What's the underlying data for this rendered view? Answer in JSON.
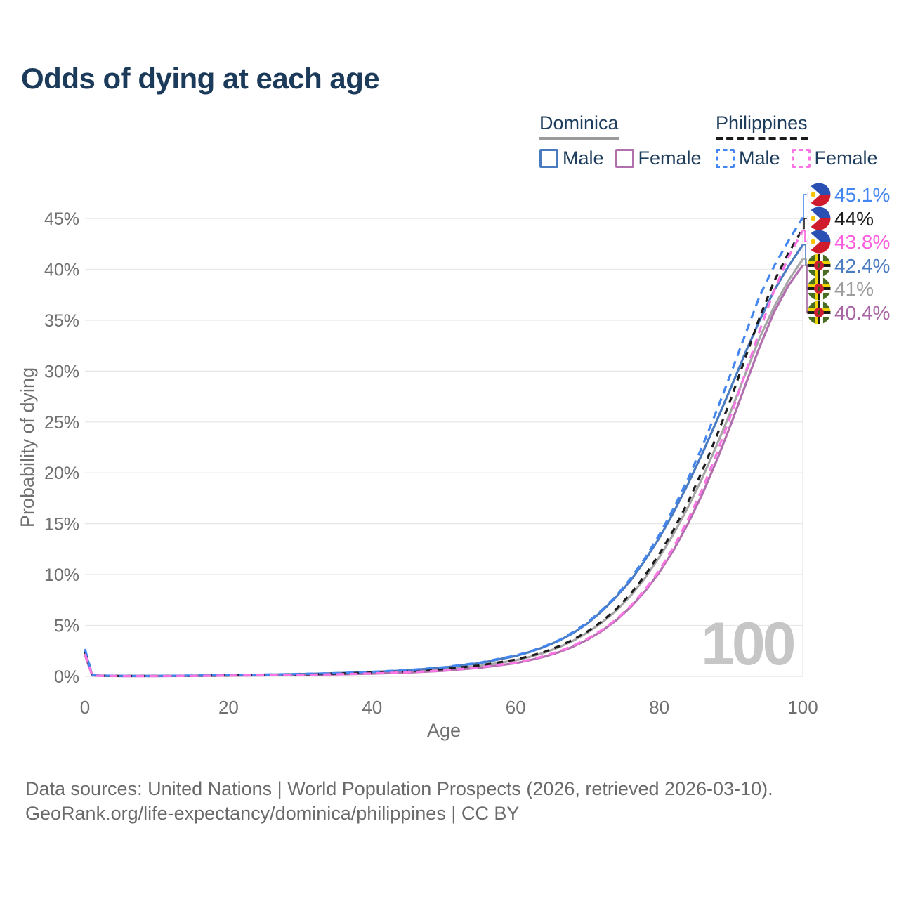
{
  "title": "Odds of dying at each age",
  "watermark": "100",
  "legend": {
    "groups": [
      {
        "country": "Dominica",
        "line_style": "solid",
        "underline_color": "#9b9b9b",
        "items": [
          {
            "label": "Male",
            "color": "#4a7ac0",
            "dashed": false
          },
          {
            "label": "Female",
            "color": "#b16fad",
            "dashed": false
          }
        ]
      },
      {
        "country": "Philippines",
        "line_style": "dashed",
        "underline_color": "#1a1a1a",
        "items": [
          {
            "label": "Male",
            "color": "#4486f0",
            "dashed": true
          },
          {
            "label": "Female",
            "color": "#fb76e4",
            "dashed": true
          }
        ]
      }
    ]
  },
  "footer": {
    "line1": "Data sources: United Nations | World Population Prospects (2026, retrieved 2026-03-10).",
    "line2": "GeoRank.org/life-expectancy/dominica/philippines | CC BY"
  },
  "chart_data": {
    "type": "line",
    "title": "Odds of dying at each age",
    "xlabel": "Age",
    "ylabel": "Probability of dying",
    "xlim": [
      0,
      100
    ],
    "ylim": [
      0,
      45
    ],
    "x_ticks": [
      0,
      20,
      40,
      60,
      80,
      100
    ],
    "y_ticks": [
      0,
      5,
      10,
      15,
      20,
      25,
      30,
      35,
      40,
      45
    ],
    "y_tick_suffix": "%",
    "grid": "horizontal",
    "legend_position": "top-right",
    "x": [
      0,
      1,
      2,
      5,
      10,
      15,
      20,
      25,
      30,
      35,
      40,
      45,
      50,
      55,
      60,
      62,
      64,
      66,
      68,
      70,
      72,
      74,
      76,
      78,
      80,
      82,
      84,
      86,
      88,
      90,
      92,
      94,
      96,
      98,
      100
    ],
    "series": [
      {
        "id": "dominica-both",
        "name": "Dominica Both sexes",
        "country": "Dominica",
        "sex": "both",
        "flag": "dominica",
        "color": "#a6a6a6",
        "label_color": "#9d9d9d",
        "dashed": false,
        "end_label": "41%",
        "values": [
          2.3,
          0.12,
          0.07,
          0.04,
          0.04,
          0.06,
          0.09,
          0.14,
          0.19,
          0.26,
          0.35,
          0.48,
          0.68,
          1.03,
          1.58,
          1.92,
          2.33,
          2.85,
          3.5,
          4.3,
          5.28,
          6.45,
          7.9,
          9.65,
          11.7,
          14.0,
          16.6,
          19.5,
          22.7,
          26.1,
          29.7,
          33.3,
          36.3,
          38.9,
          41.0
        ]
      },
      {
        "id": "dominica-male",
        "name": "Dominica Male",
        "country": "Dominica",
        "sex": "male",
        "flag": "dominica",
        "color": "#4a7ac0",
        "label_color": "#4a7ac0",
        "dashed": false,
        "end_label": "42.4%",
        "values": [
          2.5,
          0.14,
          0.08,
          0.05,
          0.05,
          0.07,
          0.11,
          0.17,
          0.23,
          0.31,
          0.43,
          0.6,
          0.87,
          1.3,
          2.0,
          2.4,
          2.9,
          3.5,
          4.25,
          5.2,
          6.4,
          7.8,
          9.4,
          11.4,
          13.6,
          16.1,
          18.9,
          21.9,
          25.1,
          28.4,
          31.8,
          35.0,
          37.9,
          40.3,
          42.4
        ]
      },
      {
        "id": "dominica-female",
        "name": "Dominica Female",
        "country": "Dominica",
        "sex": "female",
        "flag": "dominica",
        "color": "#b16fad",
        "label_color": "#a964a4",
        "dashed": false,
        "end_label": "40.4%",
        "values": [
          2.1,
          0.1,
          0.06,
          0.03,
          0.03,
          0.05,
          0.075,
          0.105,
          0.14,
          0.2,
          0.27,
          0.38,
          0.55,
          0.84,
          1.3,
          1.6,
          1.93,
          2.37,
          2.92,
          3.6,
          4.45,
          5.5,
          6.8,
          8.35,
          10.2,
          12.4,
          15.0,
          17.9,
          21.2,
          24.8,
          28.6,
          32.4,
          35.8,
          38.4,
          40.4
        ]
      },
      {
        "id": "philippines-both",
        "name": "Philippines Both sexes",
        "country": "Philippines",
        "sex": "both",
        "flag": "philippines",
        "color": "#1c1c1c",
        "label_color": "#1c1c1c",
        "dashed": true,
        "end_label": "44%",
        "values": [
          2.45,
          0.13,
          0.07,
          0.04,
          0.04,
          0.06,
          0.1,
          0.15,
          0.2,
          0.27,
          0.37,
          0.5,
          0.72,
          1.08,
          1.65,
          2.0,
          2.4,
          2.95,
          3.6,
          4.4,
          5.4,
          6.6,
          8.1,
          9.9,
          12.0,
          14.4,
          17.1,
          20.2,
          23.6,
          27.3,
          31.3,
          35.3,
          38.8,
          41.6,
          44.0
        ]
      },
      {
        "id": "philippines-male",
        "name": "Philippines Male",
        "country": "Philippines",
        "sex": "male",
        "flag": "philippines",
        "color": "#4486f0",
        "label_color": "#4486f0",
        "dashed": true,
        "end_label": "45.1%",
        "values": [
          2.7,
          0.15,
          0.08,
          0.05,
          0.05,
          0.08,
          0.12,
          0.18,
          0.24,
          0.32,
          0.45,
          0.62,
          0.9,
          1.35,
          2.05,
          2.45,
          2.95,
          3.55,
          4.35,
          5.3,
          6.5,
          7.9,
          9.6,
          11.6,
          13.9,
          16.5,
          19.4,
          22.6,
          26.1,
          29.8,
          33.6,
          37.4,
          40.3,
          42.8,
          45.1
        ]
      },
      {
        "id": "philippines-female",
        "name": "Philippines Female",
        "country": "Philippines",
        "sex": "female",
        "flag": "philippines",
        "color": "#fb76e4",
        "label_color": "#fb5ede",
        "dashed": true,
        "end_label": "43.8%",
        "values": [
          2.2,
          0.11,
          0.06,
          0.035,
          0.035,
          0.05,
          0.08,
          0.11,
          0.15,
          0.21,
          0.29,
          0.4,
          0.58,
          0.88,
          1.35,
          1.65,
          2.0,
          2.45,
          3.0,
          3.7,
          4.55,
          5.6,
          6.9,
          8.5,
          10.4,
          12.7,
          15.4,
          18.4,
          21.9,
          25.7,
          29.8,
          34.0,
          37.9,
          41.2,
          43.8
        ]
      }
    ]
  }
}
